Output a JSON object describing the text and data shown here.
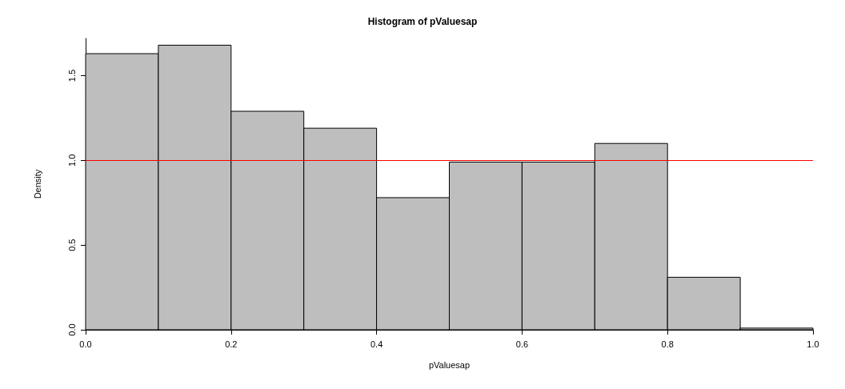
{
  "chart_data": {
    "type": "histogram",
    "title": "Histogram of pValuesap",
    "xlabel": "pValuesap",
    "ylabel": "Density",
    "bins": [
      0,
      0.1,
      0.2,
      0.3,
      0.4,
      0.5,
      0.6,
      0.7,
      0.8,
      0.9,
      1.0
    ],
    "values": [
      1.63,
      1.68,
      1.29,
      1.19,
      0.78,
      0.99,
      0.99,
      1.1,
      0.31,
      0.01
    ],
    "color": "#bebebe",
    "xlim": [
      0,
      1
    ],
    "ylim": [
      0,
      1.72
    ],
    "xticks": [
      {
        "value": 0,
        "label": "0.0"
      },
      {
        "value": 0.2,
        "label": "0.2"
      },
      {
        "value": 0.4,
        "label": "0.4"
      },
      {
        "value": 0.6,
        "label": "0.6"
      },
      {
        "value": 0.8,
        "label": "0.8"
      },
      {
        "value": 1,
        "label": "1.0"
      }
    ],
    "yticks": [
      {
        "value": 0,
        "label": "0.0"
      },
      {
        "value": 0.5,
        "label": "0.5"
      },
      {
        "value": 1,
        "label": "1.0"
      },
      {
        "value": 1.5,
        "label": "1.5"
      }
    ],
    "ref_lines": [
      {
        "axis": "y",
        "value": 1,
        "color": "#ff0000"
      }
    ],
    "grid": false
  }
}
